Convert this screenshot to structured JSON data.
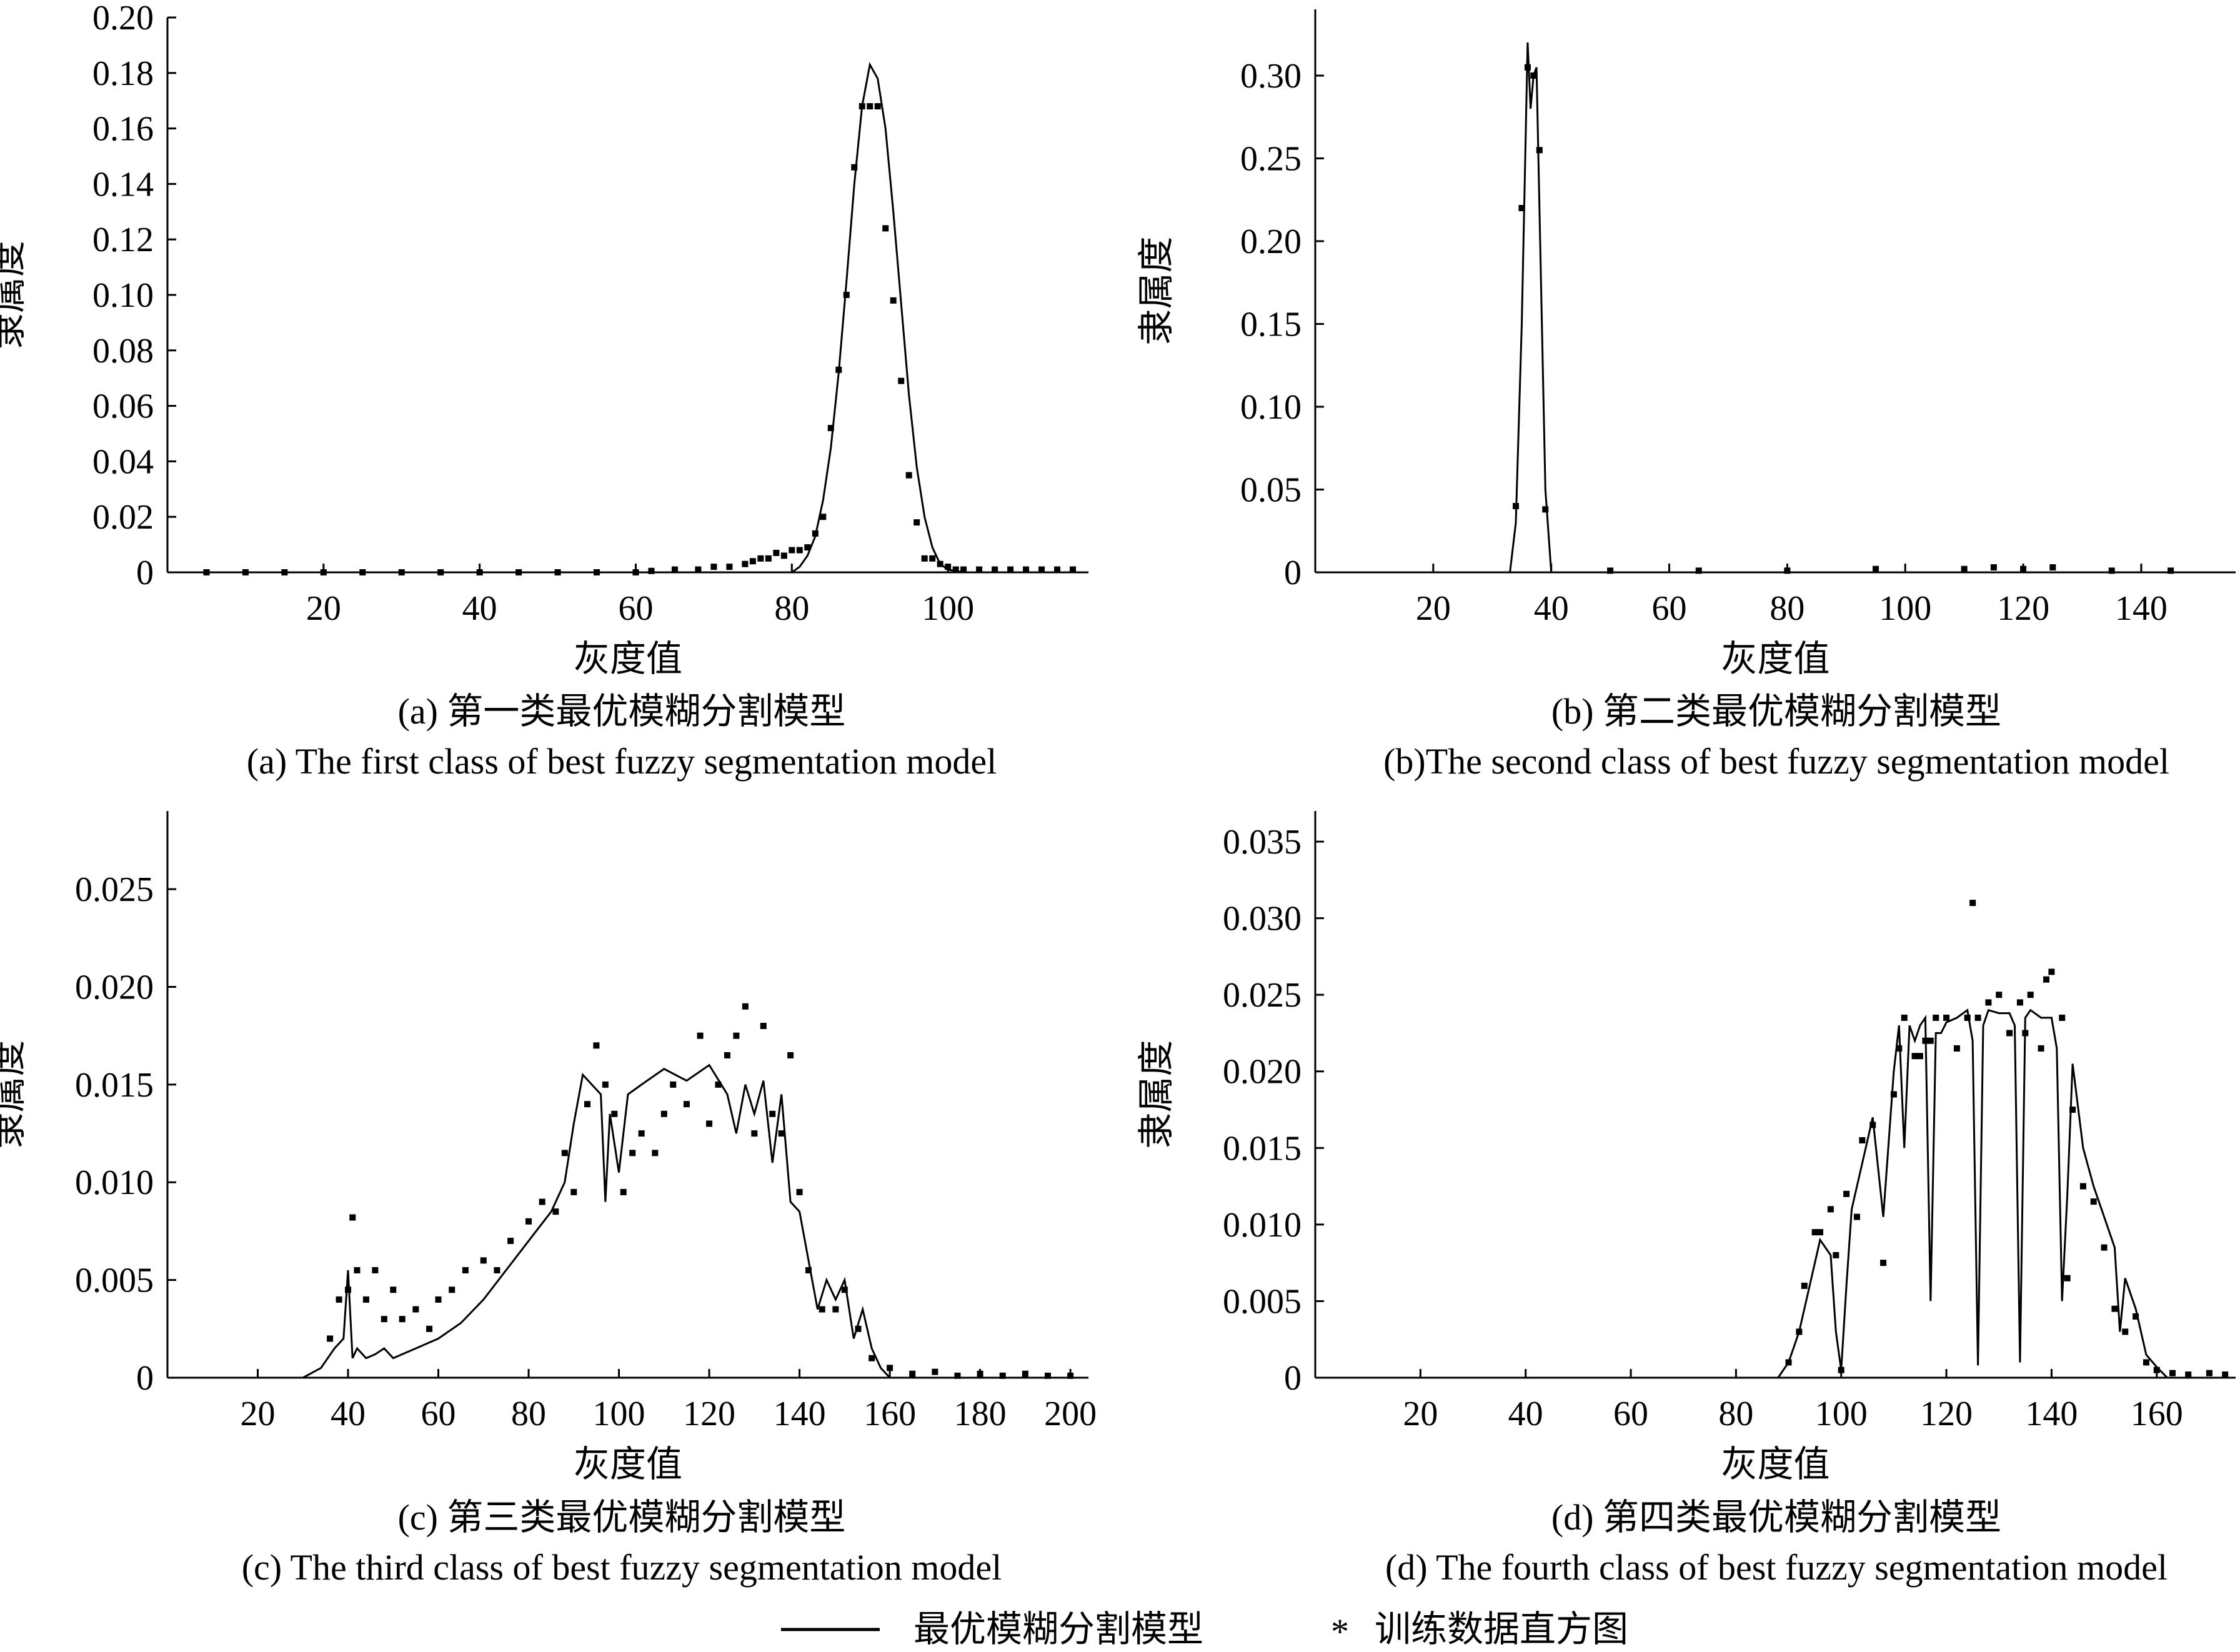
{
  "legend": {
    "model_label": "最优模糊分割模型",
    "data_marker": "*",
    "data_label": "训练数据直方图"
  },
  "chart_data": [
    {
      "id": "a",
      "type": "line",
      "ylabel": "隶属度",
      "xlabel": "灰度值",
      "caption_cn": "(a) 第一类最优模糊分割模型",
      "caption_en": "(a) The first class of best fuzzy segmentation model",
      "xlim": [
        0,
        118
      ],
      "ylim": [
        0,
        0.2
      ],
      "xticks": [
        20,
        40,
        60,
        80,
        100
      ],
      "yticks": [
        0,
        0.02,
        0.04,
        0.06,
        0.08,
        0.1,
        0.12,
        0.14,
        0.16,
        0.18,
        0.2
      ],
      "ytick_labels": [
        "0",
        "0.02",
        "0.04",
        "0.06",
        "0.08",
        "0.10",
        "0.12",
        "0.14",
        "0.16",
        "0.18",
        "0.20"
      ],
      "series": [
        {
          "kind": "line",
          "x": [
            0,
            60,
            70,
            75,
            78,
            80,
            81,
            82,
            83,
            84,
            85,
            86,
            87,
            88,
            89,
            90,
            91,
            92,
            93,
            94,
            95,
            96,
            97,
            98,
            99,
            100,
            102,
            118
          ],
          "y": [
            0,
            0,
            0,
            0,
            0,
            0,
            0.002,
            0.006,
            0.013,
            0.026,
            0.045,
            0.072,
            0.105,
            0.14,
            0.168,
            0.183,
            0.178,
            0.16,
            0.13,
            0.097,
            0.064,
            0.038,
            0.02,
            0.009,
            0.003,
            0.001,
            0,
            0
          ]
        },
        {
          "kind": "points",
          "x": [
            5,
            10,
            15,
            20,
            25,
            30,
            35,
            40,
            45,
            50,
            55,
            60,
            62,
            65,
            68,
            70,
            72,
            74,
            75,
            76,
            77,
            78,
            79,
            80,
            81,
            82,
            83,
            84,
            85,
            86,
            87,
            88,
            89,
            90,
            91,
            92,
            93,
            94,
            95,
            96,
            97,
            98,
            99,
            100,
            101,
            102,
            104,
            106,
            108,
            110,
            112,
            114,
            116
          ],
          "y": [
            0,
            0,
            0,
            0,
            0,
            0,
            0,
            0,
            0,
            0,
            0,
            0,
            0.0005,
            0.001,
            0.001,
            0.002,
            0.002,
            0.003,
            0.004,
            0.005,
            0.005,
            0.007,
            0.006,
            0.008,
            0.008,
            0.009,
            0.014,
            0.02,
            0.052,
            0.073,
            0.1,
            0.146,
            0.168,
            0.168,
            0.168,
            0.124,
            0.098,
            0.069,
            0.035,
            0.018,
            0.005,
            0.005,
            0.003,
            0.002,
            0.001,
            0.001,
            0.001,
            0.001,
            0.001,
            0.001,
            0.001,
            0.001,
            0.001
          ]
        }
      ]
    },
    {
      "id": "b",
      "type": "line",
      "ylabel": "隶属度",
      "xlabel": "灰度值",
      "caption_cn": "(b) 第二类最优模糊分割模型",
      "caption_en": "(b)The second class of best fuzzy segmentation model",
      "xlim": [
        0,
        156
      ],
      "ylim": [
        0,
        0.34
      ],
      "xticks": [
        20,
        40,
        60,
        80,
        100,
        120,
        140
      ],
      "yticks": [
        0,
        0.05,
        0.1,
        0.15,
        0.2,
        0.25,
        0.3
      ],
      "ytick_labels": [
        "0",
        "0.05",
        "0.10",
        "0.15",
        "0.20",
        "0.25",
        "0.30"
      ],
      "series": [
        {
          "kind": "line",
          "x": [
            0,
            33,
            34,
            35,
            36,
            36.5,
            37,
            37.5,
            38,
            39,
            40,
            41,
            156
          ],
          "y": [
            0,
            0,
            0.03,
            0.15,
            0.32,
            0.28,
            0.3,
            0.305,
            0.22,
            0.05,
            0,
            0,
            0
          ]
        },
        {
          "kind": "points",
          "x": [
            34,
            35,
            36,
            37,
            38,
            39,
            50,
            65,
            80,
            95,
            110,
            115,
            120,
            125,
            135,
            145
          ],
          "y": [
            0.04,
            0.22,
            0.305,
            0.3,
            0.255,
            0.038,
            0.001,
            0.001,
            0.001,
            0.002,
            0.002,
            0.003,
            0.002,
            0.003,
            0.001,
            0.001
          ]
        }
      ]
    },
    {
      "id": "c",
      "type": "line",
      "ylabel": "隶属度",
      "xlabel": "灰度值",
      "caption_cn": "(c) 第三类最优模糊分割模型",
      "caption_en": "(c) The third class of best fuzzy segmentation model",
      "xlim": [
        0,
        204
      ],
      "ylim": [
        0,
        0.029
      ],
      "xticks": [
        20,
        40,
        60,
        80,
        100,
        120,
        140,
        160,
        180,
        200
      ],
      "yticks": [
        0,
        0.005,
        0.01,
        0.015,
        0.02,
        0.025
      ],
      "ytick_labels": [
        "0",
        "0.005",
        "0.010",
        "0.015",
        "0.020",
        "0.025"
      ],
      "series": [
        {
          "kind": "line",
          "x": [
            0,
            30,
            34,
            37,
            39,
            40,
            41,
            42,
            44,
            46,
            48,
            50,
            55,
            60,
            65,
            70,
            75,
            80,
            85,
            88,
            90,
            92,
            94,
            96,
            97,
            98,
            100,
            102,
            105,
            110,
            115,
            120,
            124,
            126,
            128,
            130,
            132,
            134,
            136,
            138,
            140,
            142,
            144,
            146,
            148,
            150,
            152,
            154,
            156,
            158,
            160,
            204
          ],
          "y": [
            0,
            0,
            0.0005,
            0.0015,
            0.002,
            0.0055,
            0.001,
            0.0015,
            0.001,
            0.0012,
            0.0015,
            0.001,
            0.0015,
            0.002,
            0.0028,
            0.004,
            0.0055,
            0.007,
            0.0085,
            0.01,
            0.013,
            0.0155,
            0.015,
            0.0145,
            0.009,
            0.0135,
            0.0105,
            0.0145,
            0.015,
            0.0158,
            0.0152,
            0.016,
            0.0145,
            0.0125,
            0.015,
            0.0135,
            0.0152,
            0.011,
            0.0145,
            0.009,
            0.0085,
            0.006,
            0.0035,
            0.005,
            0.004,
            0.005,
            0.002,
            0.0035,
            0.0015,
            0.0005,
            0,
            0
          ]
        },
        {
          "kind": "points",
          "x": [
            36,
            38,
            40,
            41,
            42,
            44,
            46,
            48,
            50,
            52,
            55,
            58,
            60,
            63,
            66,
            70,
            73,
            76,
            80,
            83,
            86,
            88,
            90,
            93,
            95,
            97,
            99,
            101,
            103,
            105,
            108,
            110,
            112,
            115,
            118,
            120,
            122,
            124,
            126,
            128,
            130,
            132,
            134,
            136,
            138,
            140,
            142,
            145,
            148,
            150,
            153,
            156,
            160,
            165,
            170,
            175,
            180,
            185,
            190,
            195,
            200
          ],
          "y": [
            0.002,
            0.004,
            0.0045,
            0.0082,
            0.0055,
            0.004,
            0.0055,
            0.003,
            0.0045,
            0.003,
            0.0035,
            0.0025,
            0.004,
            0.0045,
            0.0055,
            0.006,
            0.0055,
            0.007,
            0.008,
            0.009,
            0.0085,
            0.0115,
            0.0095,
            0.014,
            0.017,
            0.015,
            0.0135,
            0.0095,
            0.0115,
            0.0125,
            0.0115,
            0.0135,
            0.015,
            0.014,
            0.0175,
            0.013,
            0.015,
            0.0165,
            0.0175,
            0.019,
            0.0125,
            0.018,
            0.0135,
            0.0125,
            0.0165,
            0.0095,
            0.0055,
            0.0035,
            0.0035,
            0.0045,
            0.0025,
            0.001,
            0.0005,
            0.0002,
            0.0003,
            0.0001,
            0.0002,
            0.0001,
            0.0002,
            0.0001,
            0.0001
          ]
        }
      ]
    },
    {
      "id": "d",
      "type": "line",
      "ylabel": "隶属度",
      "xlabel": "灰度值",
      "caption_cn": "(d) 第四类最优模糊分割模型",
      "caption_en": "(d) The fourth class of best fuzzy segmentation model",
      "xlim": [
        0,
        175
      ],
      "ylim": [
        0,
        0.037
      ],
      "xticks": [
        20,
        40,
        60,
        80,
        100,
        120,
        140,
        160
      ],
      "yticks": [
        0,
        0.005,
        0.01,
        0.015,
        0.02,
        0.025,
        0.03,
        0.035
      ],
      "ytick_labels": [
        "0",
        "0.005",
        "0.010",
        "0.015",
        "0.020",
        "0.025",
        "0.030",
        "0.035"
      ],
      "series": [
        {
          "kind": "line",
          "x": [
            0,
            88,
            90,
            92,
            94,
            96,
            98,
            99,
            100,
            101,
            102,
            104,
            106,
            108,
            110,
            111,
            112,
            113,
            114,
            115,
            116,
            117,
            118,
            119,
            120,
            122,
            124,
            125,
            126,
            127,
            128,
            130,
            132,
            133,
            134,
            135,
            136,
            138,
            140,
            141,
            142,
            143,
            144,
            146,
            148,
            150,
            152,
            153,
            154,
            156,
            158,
            160,
            162,
            175
          ],
          "y": [
            0,
            0,
            0.001,
            0.003,
            0.006,
            0.009,
            0.008,
            0.003,
            0.0005,
            0.006,
            0.011,
            0.014,
            0.017,
            0.0105,
            0.02,
            0.023,
            0.015,
            0.023,
            0.022,
            0.023,
            0.0235,
            0.005,
            0.0225,
            0.0225,
            0.0232,
            0.0235,
            0.024,
            0.022,
            0.0008,
            0.023,
            0.024,
            0.0238,
            0.0238,
            0.023,
            0.001,
            0.0235,
            0.024,
            0.0235,
            0.0235,
            0.0215,
            0.005,
            0.012,
            0.0205,
            0.015,
            0.0125,
            0.0105,
            0.0085,
            0.003,
            0.0065,
            0.0045,
            0.0015,
            0.0007,
            0,
            0
          ]
        },
        {
          "kind": "points",
          "x": [
            90,
            92,
            93,
            95,
            96,
            98,
            99,
            100,
            101,
            103,
            104,
            106,
            108,
            110,
            111,
            112,
            114,
            115,
            116,
            117,
            118,
            120,
            122,
            124,
            125,
            126,
            128,
            130,
            132,
            134,
            135,
            136,
            138,
            139,
            140,
            142,
            143,
            144,
            146,
            148,
            150,
            152,
            154,
            156,
            158,
            160,
            163,
            166,
            170,
            173
          ],
          "y": [
            0.001,
            0.003,
            0.006,
            0.0095,
            0.0095,
            0.011,
            0.008,
            0.0005,
            0.012,
            0.0105,
            0.0155,
            0.0165,
            0.0075,
            0.0185,
            0.0215,
            0.0235,
            0.021,
            0.021,
            0.022,
            0.022,
            0.0235,
            0.0235,
            0.0215,
            0.0235,
            0.031,
            0.0235,
            0.0245,
            0.025,
            0.0225,
            0.0245,
            0.0225,
            0.025,
            0.0215,
            0.026,
            0.0265,
            0.0235,
            0.0065,
            0.0175,
            0.0125,
            0.0115,
            0.0085,
            0.0045,
            0.003,
            0.004,
            0.001,
            0.0005,
            0.0003,
            0.0002,
            0.0003,
            0.0002
          ]
        }
      ]
    }
  ]
}
